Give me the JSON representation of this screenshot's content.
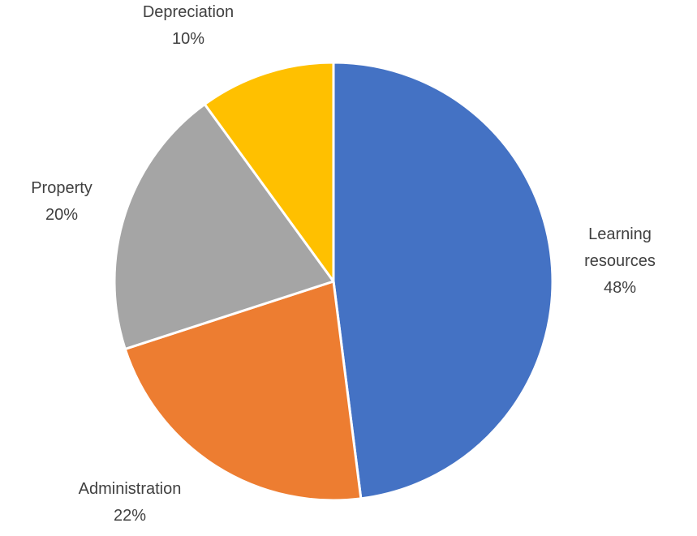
{
  "chart_data": {
    "type": "pie",
    "title": "",
    "slices": [
      {
        "label": "Learning resources",
        "label_lines": [
          "Learning",
          "resources"
        ],
        "value": 48,
        "display": "48%",
        "color": "#4472C4"
      },
      {
        "label": "Administration",
        "label_lines": [
          "Administration"
        ],
        "value": 22,
        "display": "22%",
        "color": "#ED7D31"
      },
      {
        "label": "Property",
        "label_lines": [
          "Property"
        ],
        "value": 20,
        "display": "20%",
        "color": "#A5A5A5"
      },
      {
        "label": "Depreciation",
        "label_lines": [
          "Depreciation"
        ],
        "value": 10,
        "display": "10%",
        "color": "#FFC000"
      }
    ],
    "start_angle": "12 o'clock",
    "direction": "clockwise",
    "legend": "none",
    "data_labels": "category name and percentage outside slices"
  }
}
